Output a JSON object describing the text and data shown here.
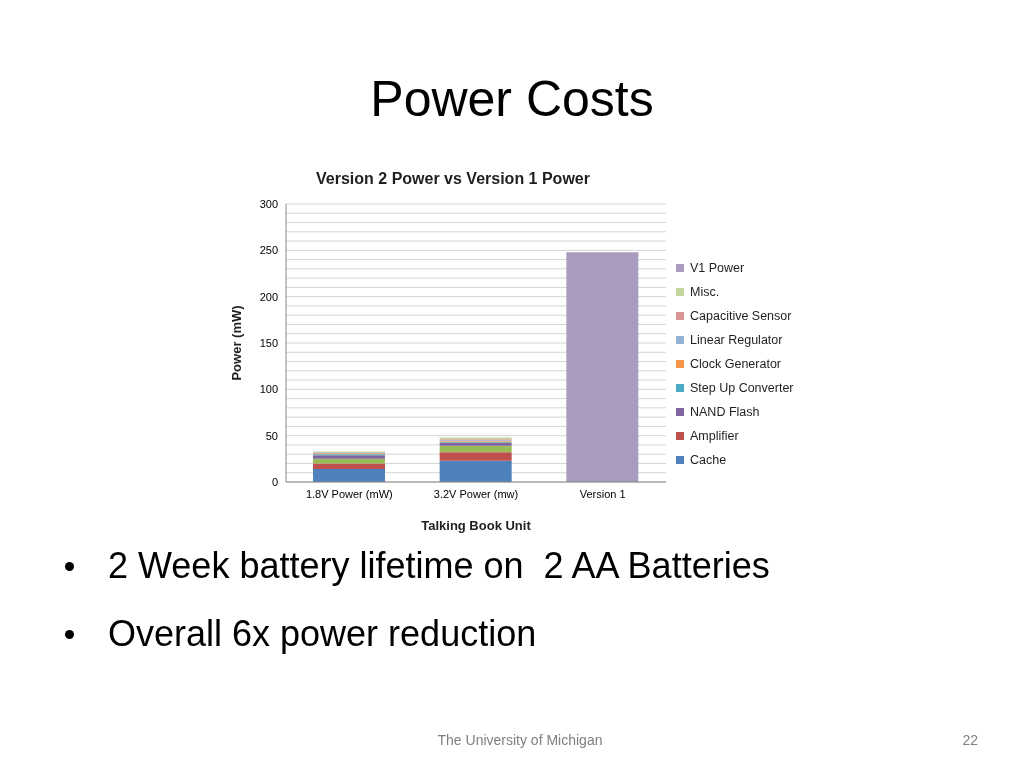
{
  "chart_data": {
    "type": "bar",
    "title": "Power Costs",
    "subtitle": "Version 2 Power vs Version 1 Power",
    "xlabel": "Talking Book Unit",
    "ylabel": "Power (mW)",
    "categories": [
      "1.8V Power (mW)",
      "3.2V Power (mw)",
      "Version 1"
    ],
    "stacked": true,
    "series": [
      {
        "name": "Cache",
        "color": "#4f81bd",
        "values": [
          14,
          23,
          null
        ]
      },
      {
        "name": "Amplifier",
        "color": "#c0504d",
        "values": [
          6,
          9,
          null
        ]
      },
      {
        "color": "#9bbb59",
        "values": [
          5,
          7,
          null
        ]
      },
      {
        "name": "NAND Flash",
        "color": "#8064a2",
        "values": [
          4,
          3,
          null
        ]
      },
      {
        "name": "Step Up Converter",
        "color": "#4bacc6",
        "values": [
          1,
          1,
          null
        ]
      },
      {
        "name": "Clock Generator",
        "color": "#f79646",
        "values": [
          1,
          1,
          null
        ]
      },
      {
        "name": "Linear Regulator",
        "color": "#95b3d7",
        "values": [
          1,
          1,
          null
        ]
      },
      {
        "name": "Capacitive Sensor",
        "color": "#d99694",
        "values": [
          0,
          1,
          null
        ]
      },
      {
        "name": "Misc.",
        "color": "#c3d69b",
        "values": [
          1,
          2,
          null
        ]
      },
      {
        "name": "V1 Power",
        "color": "#a99bbd",
        "values": [
          null,
          null,
          248
        ]
      }
    ],
    "ylim": [
      0,
      300
    ],
    "yticks": [
      0,
      {
        "value": 10,
        "label": null
      },
      {
        "value": 20,
        "label": null
      },
      {
        "value": 30,
        "label": null
      },
      {
        "value": 40,
        "label": null
      },
      50,
      {
        "value": 60,
        "label": null
      },
      {
        "value": 70,
        "label": null
      },
      {
        "value": 80,
        "label": null
      },
      {
        "value": 90,
        "label": null
      },
      100,
      {
        "value": 110,
        "label": null
      },
      {
        "value": 120,
        "label": null
      },
      {
        "value": 130,
        "label": null
      },
      {
        "value": 140,
        "label": null
      },
      150,
      {
        "value": 160,
        "label": null
      },
      {
        "value": 170,
        "label": null
      },
      {
        "value": 180,
        "label": null
      },
      {
        "value": 190,
        "label": null
      },
      200,
      {
        "value": 210,
        "label": null
      },
      {
        "value": 220,
        "label": null
      },
      {
        "value": 230,
        "label": null
      },
      {
        "value": 240,
        "label": null
      },
      250,
      {
        "value": 260,
        "label": null
      },
      {
        "value": 270,
        "label": null
      },
      {
        "value": 280,
        "label": null
      },
      {
        "value": 290,
        "label": null
      },
      300
    ],
    "grid": "y",
    "legend": "right",
    "annotations": [
      "2 Week battery lifetime on  2 AA Batteries",
      "Overall 6x power reduction",
      "The University of Michigan",
      "22"
    ]
  }
}
